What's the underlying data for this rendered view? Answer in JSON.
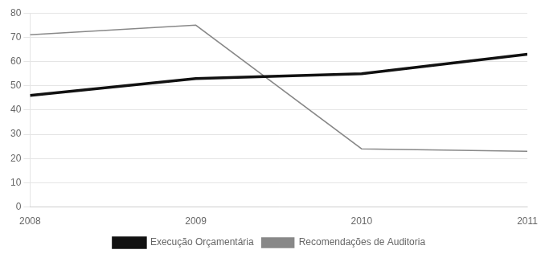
{
  "chart_data": {
    "type": "line",
    "categories": [
      "2008",
      "2009",
      "2010",
      "2011"
    ],
    "series": [
      {
        "name": "Execução Orçamentária",
        "color": "#111111",
        "values": [
          46,
          53,
          55,
          63
        ]
      },
      {
        "name": "Recomendações de Auditoria",
        "color": "#888888",
        "values": [
          71,
          75,
          24,
          23
        ]
      }
    ],
    "ylim": [
      0,
      80
    ],
    "yticks": [
      0,
      10,
      20,
      30,
      40,
      50,
      60,
      70,
      80
    ],
    "grid": true,
    "legend": "bottom"
  }
}
